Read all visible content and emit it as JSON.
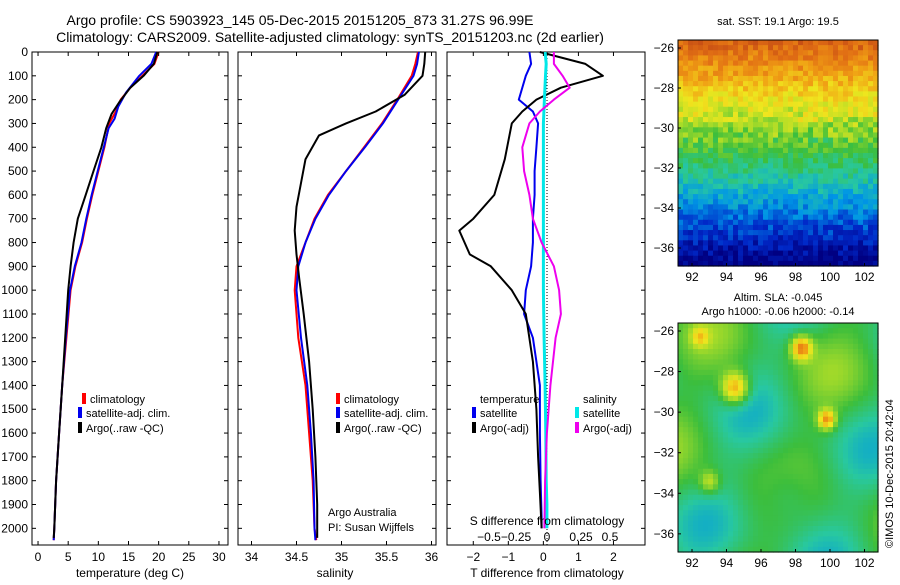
{
  "header": {
    "title_line1": "Argo profile: CS 5903923_145 05-Dec-2015 20151205_873 31.27S 96.99E",
    "title_line2": "Climatology: CARS2009. Satellite-adjusted climatology: synTS_20151203.nc (2d earlier)"
  },
  "colors": {
    "climatology": "#ff0000",
    "satellite": "#0000ee",
    "argo": "#000000",
    "sat_salinity": "#00e8e8",
    "argo_salinity": "#ee00ee"
  },
  "depth_axis": {
    "ticks": [
      0,
      100,
      200,
      300,
      400,
      500,
      600,
      700,
      800,
      900,
      1000,
      1100,
      1200,
      1300,
      1400,
      1500,
      1600,
      1700,
      1800,
      1900,
      2000
    ],
    "ylim": [
      0,
      2070
    ]
  },
  "chart_data": [
    {
      "type": "line",
      "id": "temperature",
      "xlabel": "temperature (deg C)",
      "xlim": [
        -1,
        31.5
      ],
      "xticks": [
        0,
        5,
        10,
        15,
        20,
        25,
        30
      ],
      "xticklabels": [
        "0",
        "5",
        "10",
        "15",
        "20",
        "25",
        "30"
      ],
      "legend": [
        "climatology",
        "satellite-adj. clim.",
        "Argo(..raw -QC)"
      ],
      "series": [
        {
          "name": "climatology",
          "color_key": "climatology",
          "width": 2,
          "points": [
            [
              20,
              0
            ],
            [
              19.3,
              50
            ],
            [
              17.3,
              100
            ],
            [
              15.3,
              150
            ],
            [
              13.7,
              200
            ],
            [
              12.9,
              250
            ],
            [
              11.8,
              300
            ],
            [
              11.0,
              400
            ],
            [
              10.0,
              500
            ],
            [
              9.0,
              600
            ],
            [
              8.1,
              700
            ],
            [
              7.3,
              800
            ],
            [
              6.2,
              900
            ],
            [
              5.4,
              1000
            ],
            [
              4.7,
              1200
            ],
            [
              4.0,
              1400
            ],
            [
              3.5,
              1600
            ],
            [
              3.0,
              1800
            ],
            [
              2.7,
              2000
            ],
            [
              2.6,
              2050
            ]
          ]
        },
        {
          "name": "satellite-adj. clim.",
          "color_key": "satellite",
          "width": 2,
          "points": [
            [
              19.6,
              0
            ],
            [
              18.8,
              50
            ],
            [
              16.8,
              100
            ],
            [
              14.6,
              170
            ],
            [
              13.3,
              230
            ],
            [
              12.7,
              280
            ],
            [
              11.7,
              320
            ],
            [
              10.9,
              400
            ],
            [
              9.9,
              500
            ],
            [
              8.9,
              600
            ],
            [
              8.0,
              700
            ],
            [
              7.2,
              800
            ],
            [
              6.1,
              900
            ],
            [
              5.3,
              1000
            ],
            [
              4.6,
              1200
            ],
            [
              4.0,
              1400
            ],
            [
              3.5,
              1600
            ],
            [
              3.0,
              1800
            ],
            [
              2.7,
              2000
            ],
            [
              2.6,
              2050
            ]
          ]
        },
        {
          "name": "Argo(..raw -QC)",
          "color_key": "argo",
          "width": 2,
          "points": [
            [
              19.8,
              0
            ],
            [
              19.2,
              50
            ],
            [
              17.5,
              100
            ],
            [
              15.3,
              150
            ],
            [
              13.5,
              210
            ],
            [
              12.2,
              260
            ],
            [
              11.3,
              320
            ],
            [
              10.5,
              400
            ],
            [
              9.2,
              500
            ],
            [
              7.9,
              600
            ],
            [
              6.6,
              700
            ],
            [
              5.9,
              800
            ],
            [
              5.4,
              900
            ],
            [
              5.0,
              1000
            ],
            [
              4.5,
              1200
            ],
            [
              4.0,
              1400
            ],
            [
              3.5,
              1600
            ],
            [
              3.0,
              1800
            ],
            [
              2.7,
              2000
            ],
            [
              2.6,
              2040
            ]
          ]
        }
      ]
    },
    {
      "type": "line",
      "id": "salinity",
      "xlabel": "salinity",
      "xlim": [
        33.85,
        36.05
      ],
      "xticks": [
        34,
        34.5,
        35,
        35.5,
        36
      ],
      "xticklabels": [
        "34",
        "34.5",
        "35",
        "35.5",
        "36"
      ],
      "legend": [
        "climatology",
        "satellite-adj. clim.",
        "Argo(..raw -QC)"
      ],
      "annotation_line1": "Argo Australia",
      "annotation_line2": "PI: Susan Wijffels",
      "series": [
        {
          "name": "climatology",
          "color_key": "climatology",
          "width": 2,
          "points": [
            [
              35.85,
              0
            ],
            [
              35.82,
              50
            ],
            [
              35.78,
              100
            ],
            [
              35.62,
              200
            ],
            [
              35.45,
              300
            ],
            [
              35.25,
              400
            ],
            [
              35.05,
              500
            ],
            [
              34.85,
              600
            ],
            [
              34.7,
              700
            ],
            [
              34.6,
              800
            ],
            [
              34.5,
              900
            ],
            [
              34.48,
              1000
            ],
            [
              34.52,
              1200
            ],
            [
              34.6,
              1400
            ],
            [
              34.64,
              1600
            ],
            [
              34.68,
              1800
            ],
            [
              34.7,
              2000
            ],
            [
              34.72,
              2050
            ]
          ]
        },
        {
          "name": "satellite-adj. clim.",
          "color_key": "satellite",
          "width": 2,
          "points": [
            [
              35.86,
              0
            ],
            [
              35.84,
              50
            ],
            [
              35.8,
              100
            ],
            [
              35.63,
              200
            ],
            [
              35.46,
              300
            ],
            [
              35.26,
              400
            ],
            [
              35.05,
              500
            ],
            [
              34.86,
              600
            ],
            [
              34.71,
              700
            ],
            [
              34.6,
              800
            ],
            [
              34.52,
              900
            ],
            [
              34.5,
              1000
            ],
            [
              34.55,
              1200
            ],
            [
              34.62,
              1400
            ],
            [
              34.66,
              1600
            ],
            [
              34.69,
              1800
            ],
            [
              34.7,
              2000
            ],
            [
              34.71,
              2050
            ]
          ]
        },
        {
          "name": "Argo(..raw -QC)",
          "color_key": "argo",
          "width": 2,
          "points": [
            [
              35.93,
              0
            ],
            [
              35.92,
              50
            ],
            [
              35.9,
              100
            ],
            [
              35.7,
              180
            ],
            [
              35.38,
              250
            ],
            [
              35.05,
              300
            ],
            [
              34.75,
              350
            ],
            [
              34.6,
              450
            ],
            [
              34.55,
              550
            ],
            [
              34.5,
              650
            ],
            [
              34.48,
              750
            ],
            [
              34.5,
              850
            ],
            [
              34.53,
              950
            ],
            [
              34.58,
              1100
            ],
            [
              34.64,
              1300
            ],
            [
              34.68,
              1500
            ],
            [
              34.71,
              1700
            ],
            [
              34.73,
              1900
            ],
            [
              34.73,
              2040
            ]
          ]
        }
      ]
    },
    {
      "type": "line",
      "id": "difference",
      "xlabel": "T difference from climatology",
      "xlim": [
        -2.75,
        2.9
      ],
      "xticks": [
        -2,
        -1,
        0,
        1,
        2
      ],
      "xticklabels": [
        "−2",
        "−1",
        "0",
        "1",
        "2"
      ],
      "top_axis_label": "S difference from climatology",
      "s_ticklabels": [
        "−0.5",
        "−0.25",
        "0",
        "0.25",
        "0.5"
      ],
      "legend_temperature_title": "temperature",
      "legend_salinity_title": "salinity",
      "legend_temperature": [
        "satellite",
        "Argo(-adj)"
      ],
      "legend_salinity": [
        "satellite",
        "Argo(-adj)"
      ],
      "series": [
        {
          "name": "temperature satellite",
          "color_key": "satellite",
          "width": 2,
          "points": [
            [
              -0.4,
              0
            ],
            [
              -0.35,
              50
            ],
            [
              -0.5,
              100
            ],
            [
              -0.7,
              200
            ],
            [
              -0.3,
              250
            ],
            [
              -0.15,
              300
            ],
            [
              -0.2,
              400
            ],
            [
              -0.25,
              500
            ],
            [
              -0.25,
              600
            ],
            [
              -0.3,
              700
            ],
            [
              -0.3,
              800
            ],
            [
              -0.35,
              900
            ],
            [
              -0.5,
              1000
            ],
            [
              -0.55,
              1100
            ],
            [
              -0.3,
              1200
            ],
            [
              -0.1,
              1400
            ],
            [
              -0.1,
              1600
            ],
            [
              -0.08,
              1800
            ],
            [
              -0.05,
              1950
            ],
            [
              -0.05,
              2000
            ]
          ]
        },
        {
          "name": "temperature Argo(-adj)",
          "color_key": "argo",
          "width": 2,
          "points": [
            [
              -0.1,
              0
            ],
            [
              1.2,
              50
            ],
            [
              1.7,
              100
            ],
            [
              0.5,
              150
            ],
            [
              -0.2,
              200
            ],
            [
              -0.6,
              250
            ],
            [
              -0.9,
              300
            ],
            [
              -1.1,
              450
            ],
            [
              -1.4,
              600
            ],
            [
              -2.0,
              700
            ],
            [
              -2.4,
              750
            ],
            [
              -2.1,
              850
            ],
            [
              -1.5,
              900
            ],
            [
              -0.9,
              1000
            ],
            [
              -0.5,
              1100
            ],
            [
              -0.3,
              1300
            ],
            [
              -0.2,
              1500
            ],
            [
              -0.15,
              1700
            ],
            [
              -0.1,
              1850
            ],
            [
              -0.05,
              2000
            ]
          ]
        },
        {
          "name": "salinity satellite",
          "color_key": "sat_salinity",
          "width": 3,
          "points": [
            [
              0.05,
              0
            ],
            [
              0.08,
              50
            ],
            [
              0.06,
              100
            ],
            [
              0.03,
              200
            ],
            [
              0.0,
              300
            ],
            [
              0.0,
              400
            ],
            [
              0.0,
              500
            ],
            [
              0.0,
              600
            ],
            [
              0.0,
              700
            ],
            [
              0.0,
              800
            ],
            [
              0.0,
              900
            ],
            [
              0.0,
              1000
            ],
            [
              0.02,
              1200
            ],
            [
              0.05,
              1400
            ],
            [
              0.07,
              1600
            ],
            [
              0.08,
              1800
            ],
            [
              0.1,
              1900
            ],
            [
              0.1,
              2000
            ]
          ]
        },
        {
          "name": "salinity Argo(-adj)",
          "color_key": "argo_salinity",
          "width": 2,
          "points": [
            [
              0.3,
              0
            ],
            [
              0.3,
              50
            ],
            [
              0.55,
              100
            ],
            [
              0.75,
              150
            ],
            [
              0.3,
              200
            ],
            [
              -0.1,
              250
            ],
            [
              -0.4,
              300
            ],
            [
              -0.6,
              400
            ],
            [
              -0.55,
              500
            ],
            [
              -0.4,
              600
            ],
            [
              -0.3,
              700
            ],
            [
              -0.05,
              800
            ],
            [
              0.3,
              900
            ],
            [
              0.45,
              1000
            ],
            [
              0.5,
              1100
            ],
            [
              0.35,
              1200
            ],
            [
              0.2,
              1400
            ],
            [
              0.1,
              1600
            ],
            [
              0.05,
              1800
            ],
            [
              0.03,
              2000
            ]
          ]
        }
      ]
    }
  ],
  "sst_map": {
    "title": "sat. SST: 19.1  Argo: 19.5",
    "xticklabels": [
      "92",
      "94",
      "96",
      "98",
      "100",
      "102"
    ],
    "yticklabels": [
      "−26",
      "−28",
      "−30",
      "−32",
      "−34",
      "−36"
    ]
  },
  "sla_map": {
    "title_line1": "Altim. SLA: -0.045",
    "title_line2": "Argo h1000: -0.06 h2000: -0.14",
    "xticklabels": [
      "92",
      "94",
      "96",
      "98",
      "100",
      "102"
    ],
    "yticklabels": [
      "−26",
      "−28",
      "−30",
      "−32",
      "−34",
      "−36"
    ]
  },
  "credit": "©IMOS 10-Dec-2015 20:42:04"
}
